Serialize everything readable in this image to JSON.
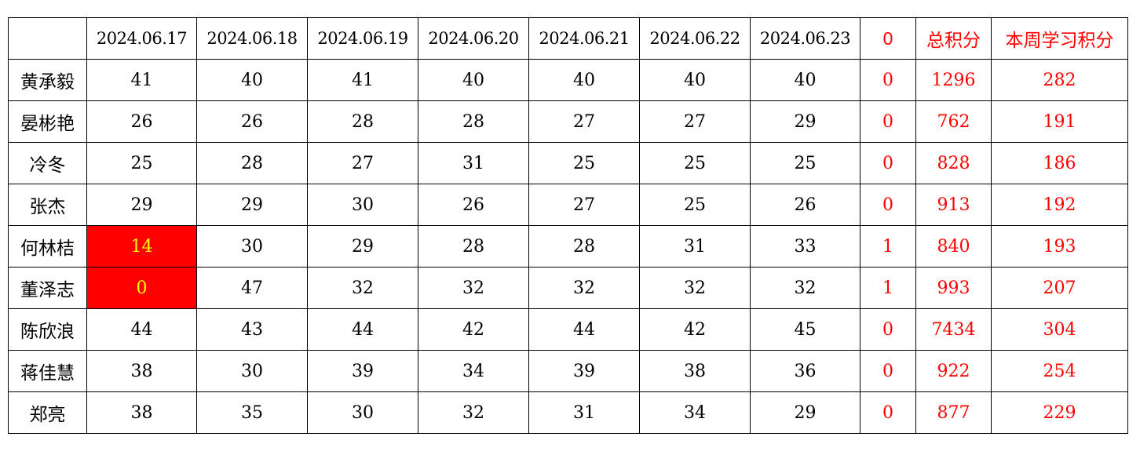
{
  "header": {
    "corner": "",
    "dates": [
      "2024.06.17",
      "2024.06.18",
      "2024.06.19",
      "2024.06.20",
      "2024.06.21",
      "2024.06.22",
      "2024.06.23"
    ],
    "flag_count": "0",
    "total": "总积分",
    "weekly": "本周学习积分"
  },
  "colors": {
    "highlight_bg": "#ff0000",
    "highlight_text": "#ffff00",
    "accent_text": "#ff0000"
  },
  "highlight_threshold_note_cells": [
    [
      4,
      0
    ],
    [
      5,
      0
    ]
  ],
  "rows": [
    {
      "name": "黄承毅",
      "scores": [
        "41",
        "40",
        "41",
        "40",
        "40",
        "40",
        "40"
      ],
      "flag": "0",
      "total": "1296",
      "weekly": "282"
    },
    {
      "name": "晏彬艳",
      "scores": [
        "26",
        "26",
        "28",
        "28",
        "27",
        "27",
        "29"
      ],
      "flag": "0",
      "total": "762",
      "weekly": "191"
    },
    {
      "name": "冷冬",
      "scores": [
        "25",
        "28",
        "27",
        "31",
        "25",
        "25",
        "25"
      ],
      "flag": "0",
      "total": "828",
      "weekly": "186"
    },
    {
      "name": "张杰",
      "scores": [
        "29",
        "29",
        "30",
        "26",
        "27",
        "25",
        "26"
      ],
      "flag": "0",
      "total": "913",
      "weekly": "192"
    },
    {
      "name": "何林桔",
      "scores": [
        "14",
        "30",
        "29",
        "28",
        "28",
        "31",
        "33"
      ],
      "flag": "1",
      "total": "840",
      "weekly": "193"
    },
    {
      "name": "董泽志",
      "scores": [
        "0",
        "47",
        "32",
        "32",
        "32",
        "32",
        "32"
      ],
      "flag": "1",
      "total": "993",
      "weekly": "207"
    },
    {
      "name": "陈欣浪",
      "scores": [
        "44",
        "43",
        "44",
        "42",
        "44",
        "42",
        "45"
      ],
      "flag": "0",
      "total": "7434",
      "weekly": "304"
    },
    {
      "name": "蒋佳慧",
      "scores": [
        "38",
        "30",
        "39",
        "34",
        "39",
        "38",
        "36"
      ],
      "flag": "0",
      "total": "922",
      "weekly": "254"
    },
    {
      "name": "郑亮",
      "scores": [
        "38",
        "35",
        "30",
        "32",
        "31",
        "34",
        "29"
      ],
      "flag": "0",
      "total": "877",
      "weekly": "229"
    }
  ]
}
